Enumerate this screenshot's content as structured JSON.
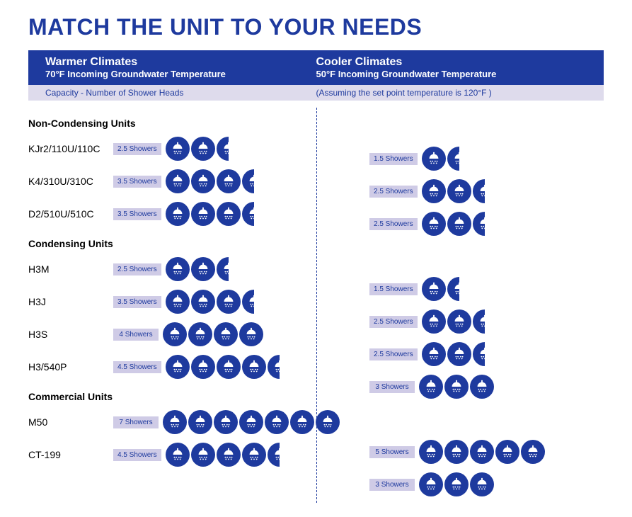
{
  "colors": {
    "brand_blue": "#1e3a9e",
    "badge_bg": "#cfcbe6",
    "capacity_bg": "#dedbec",
    "icon_fill": "#ffffff"
  },
  "title": "MATCH THE UNIT TO YOUR NEEDS",
  "climates": {
    "warm": {
      "title": "Warmer Climates",
      "sub": "70°F Incoming Groundwater Temperature"
    },
    "cool": {
      "title": "Cooler Climates",
      "sub": "50°F Incoming Groundwater Temperature"
    }
  },
  "capacity_label": "Capacity - Number of Shower Heads",
  "capacity_note": "(Assuming the set point temperature is 120°F )",
  "groups": [
    {
      "name": "Non-Condensing Units",
      "units": [
        {
          "model": "KJr2/110U/110C",
          "warm": 2.5,
          "cool": 1.5
        },
        {
          "model": "K4/310U/310C",
          "warm": 3.5,
          "cool": 2.5
        },
        {
          "model": "D2/510U/510C",
          "warm": 3.5,
          "cool": 2.5
        }
      ]
    },
    {
      "name": "Condensing Units",
      "units": [
        {
          "model": "H3M",
          "warm": 2.5,
          "cool": 1.5
        },
        {
          "model": "H3J",
          "warm": 3.5,
          "cool": 2.5
        },
        {
          "model": "H3S",
          "warm": 4,
          "cool": 2.5
        },
        {
          "model": "H3/540P",
          "warm": 4.5,
          "cool": 3
        }
      ]
    },
    {
      "name": "Commercial Units",
      "units": [
        {
          "model": "M50",
          "warm": 7,
          "cool": 5
        },
        {
          "model": "CT-199",
          "warm": 4.5,
          "cool": 3
        }
      ]
    }
  ],
  "showers_suffix": " Showers"
}
